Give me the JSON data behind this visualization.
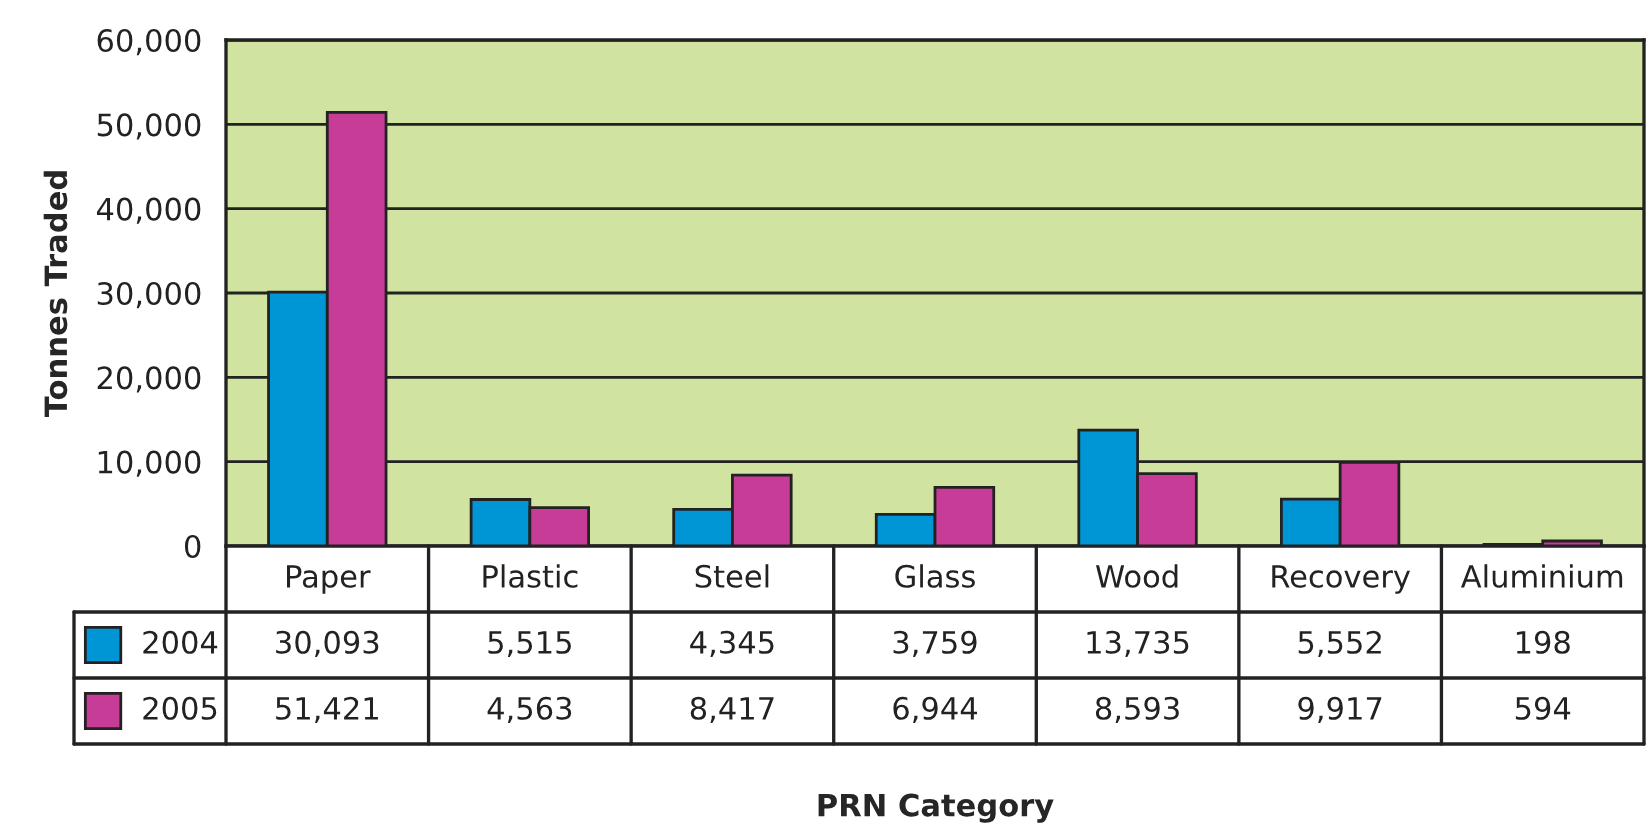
{
  "chart_data": {
    "type": "bar",
    "annotations": [
      "PRN Category"
    ],
    "ylabel": "Tonnes Traded",
    "categories": [
      "Paper",
      "Plastic",
      "Steel",
      "Glass",
      "Wood",
      "Recovery",
      "Aluminium"
    ],
    "series": [
      {
        "name": "2004",
        "color": "#0096d6",
        "values": [
          30093,
          5515,
          4345,
          3759,
          13735,
          5552,
          198
        ],
        "value_labels": [
          "30,093",
          "5,515",
          "4,345",
          "3,759",
          "13,735",
          "5,552",
          "198"
        ]
      },
      {
        "name": "2005",
        "color": "#c63c96",
        "values": [
          51421,
          4563,
          8417,
          6944,
          8593,
          9917,
          594
        ],
        "value_labels": [
          "51,421",
          "4,563",
          "8,417",
          "6,944",
          "8,593",
          "9,917",
          "594"
        ]
      }
    ],
    "ylim": [
      0,
      60000
    ],
    "yticks": [
      {
        "value": 0,
        "label": "0"
      },
      {
        "value": 10000,
        "label": "10,000"
      },
      {
        "value": 20000,
        "label": "20,000"
      },
      {
        "value": 30000,
        "label": "30,000"
      },
      {
        "value": 40000,
        "label": "40,000"
      },
      {
        "value": 50000,
        "label": "50,000"
      },
      {
        "value": 60000,
        "label": "60,000"
      }
    ],
    "grid": "y",
    "legend": "bottom"
  }
}
